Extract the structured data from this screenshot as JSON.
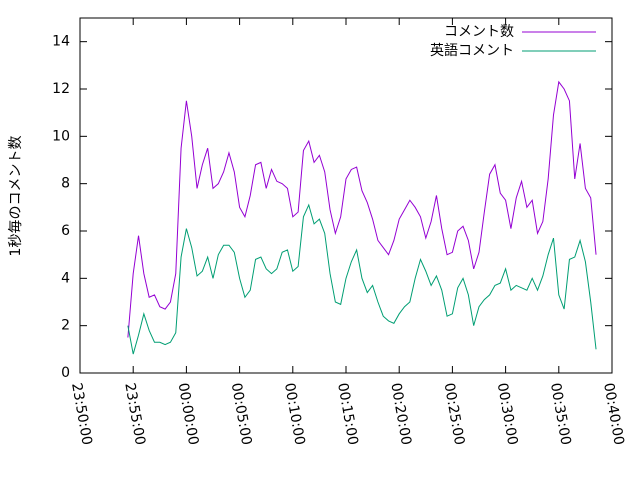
{
  "chart_data": {
    "type": "line",
    "ylabel": "1秒毎のコメント数",
    "x": [
      "23:54:30",
      "23:55:00",
      "23:55:30",
      "23:56:00",
      "23:56:30",
      "23:57:00",
      "23:57:30",
      "23:58:00",
      "23:58:30",
      "23:59:00",
      "23:59:30",
      "00:00:00",
      "00:00:30",
      "00:01:00",
      "00:01:30",
      "00:02:00",
      "00:02:30",
      "00:03:00",
      "00:03:30",
      "00:04:00",
      "00:04:30",
      "00:05:00",
      "00:05:30",
      "00:06:00",
      "00:06:30",
      "00:07:00",
      "00:07:30",
      "00:08:00",
      "00:08:30",
      "00:09:00",
      "00:09:30",
      "00:10:00",
      "00:10:30",
      "00:11:00",
      "00:11:30",
      "00:12:00",
      "00:12:30",
      "00:13:00",
      "00:13:30",
      "00:14:00",
      "00:14:30",
      "00:15:00",
      "00:15:30",
      "00:16:00",
      "00:16:30",
      "00:17:00",
      "00:17:30",
      "00:18:00",
      "00:18:30",
      "00:19:00",
      "00:19:30",
      "00:20:00",
      "00:20:30",
      "00:21:00",
      "00:21:30",
      "00:22:00",
      "00:22:30",
      "00:23:00",
      "00:23:30",
      "00:24:00",
      "00:24:30",
      "00:25:00",
      "00:25:30",
      "00:26:00",
      "00:26:30",
      "00:27:00",
      "00:27:30",
      "00:28:00",
      "00:28:30",
      "00:29:00",
      "00:29:30",
      "00:30:00",
      "00:30:30",
      "00:31:00",
      "00:31:30",
      "00:32:00",
      "00:32:30",
      "00:33:00",
      "00:33:30",
      "00:34:00",
      "00:34:30",
      "00:35:00",
      "00:35:30",
      "00:36:00",
      "00:36:30",
      "00:37:00",
      "00:37:30",
      "00:38:00",
      "00:38:30"
    ],
    "series": [
      {
        "name": "コメント数",
        "color": "#9400d3",
        "values": [
          1.5,
          4.2,
          5.8,
          4.2,
          3.2,
          3.3,
          2.8,
          2.7,
          3.0,
          4.2,
          9.5,
          11.5,
          10,
          7.8,
          8.8,
          9.5,
          7.8,
          8.0,
          8.5,
          9.3,
          8.5,
          7.0,
          6.6,
          7.5,
          8.8,
          8.9,
          7.8,
          8.6,
          8.1,
          8.0,
          7.8,
          6.6,
          6.8,
          9.4,
          9.8,
          8.9,
          9.2,
          8.5,
          6.9,
          5.9,
          6.6,
          8.2,
          8.6,
          8.7,
          7.7,
          7.2,
          6.5,
          5.6,
          5.3,
          5.0,
          5.6,
          6.5,
          6.9,
          7.3,
          7.0,
          6.6,
          5.7,
          6.4,
          7.5,
          6.1,
          5.0,
          5.1,
          6.0,
          6.2,
          5.6,
          4.4,
          5.1,
          6.8,
          8.4,
          8.8,
          7.6,
          7.3,
          6.1,
          7.4,
          8.1,
          7.0,
          7.3,
          5.9,
          6.4,
          8.2,
          10.9,
          12.3,
          12.0,
          11.5,
          8.2,
          9.7,
          7.8,
          7.4,
          5.0
        ]
      },
      {
        "name": "英語コメント",
        "color": "#009e73",
        "values": [
          2.0,
          0.8,
          1.6,
          2.5,
          1.8,
          1.3,
          1.3,
          1.2,
          1.3,
          1.7,
          4.9,
          6.1,
          5.3,
          4.1,
          4.3,
          4.9,
          4.0,
          5.0,
          5.4,
          5.4,
          5.1,
          4.0,
          3.2,
          3.5,
          4.8,
          4.9,
          4.4,
          4.2,
          4.4,
          5.1,
          5.2,
          4.3,
          4.5,
          6.6,
          7.1,
          6.3,
          6.5,
          5.9,
          4.2,
          3.0,
          2.9,
          4.0,
          4.7,
          5.2,
          4.0,
          3.4,
          3.7,
          3.0,
          2.4,
          2.2,
          2.1,
          2.5,
          2.8,
          3.0,
          4.0,
          4.8,
          4.3,
          3.7,
          4.1,
          3.5,
          2.4,
          2.5,
          3.6,
          4.0,
          3.3,
          2.0,
          2.8,
          3.1,
          3.3,
          3.7,
          3.8,
          4.4,
          3.5,
          3.7,
          3.6,
          3.5,
          4.0,
          3.5,
          4.1,
          5.0,
          5.7,
          3.3,
          2.7,
          4.8,
          4.9,
          5.6,
          4.7,
          3.0,
          1.0
        ]
      }
    ],
    "xlim": [
      "23:50:00",
      "00:40:00"
    ],
    "xticks": [
      "23:50:00",
      "23:55:00",
      "00:00:00",
      "00:05:00",
      "00:10:00",
      "00:15:00",
      "00:20:00",
      "00:25:00",
      "00:30:00",
      "00:35:00",
      "00:40:00"
    ],
    "ylim": [
      0,
      15
    ],
    "yticks": [
      0,
      2,
      4,
      6,
      8,
      10,
      12,
      14
    ],
    "legend": "top-right"
  }
}
